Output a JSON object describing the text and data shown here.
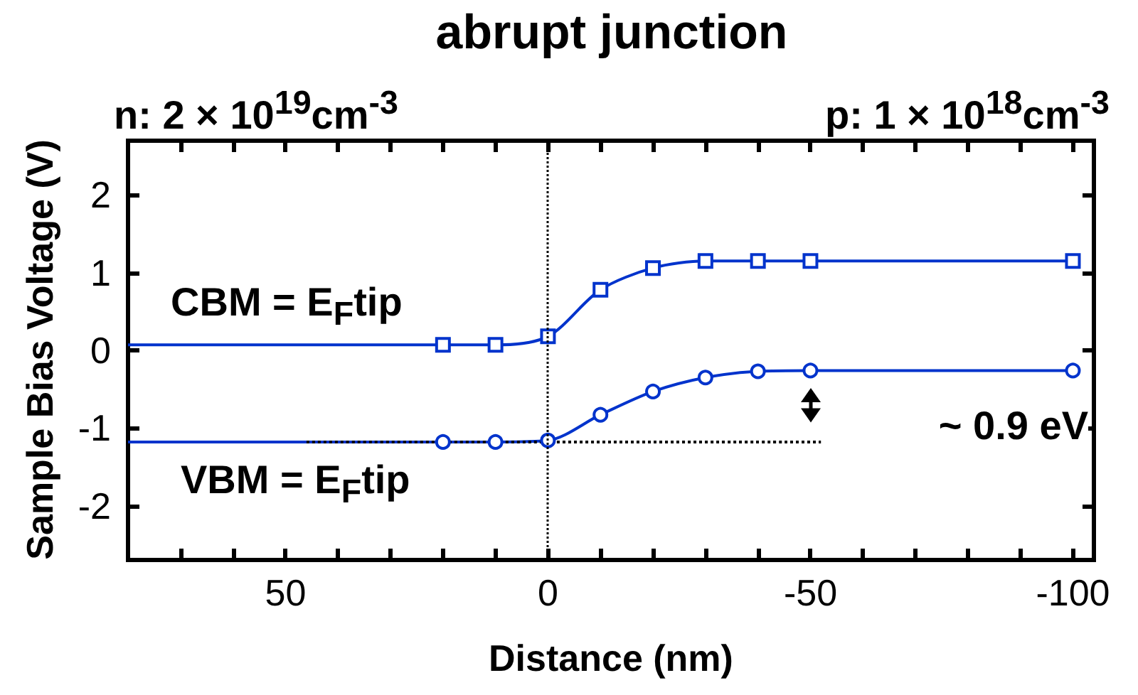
{
  "chart_data": {
    "type": "line",
    "title": "abrupt junction",
    "xlabel": "Distance (nm)",
    "ylabel": "Sample Bias Voltage (V)",
    "xlim": [
      80,
      -104
    ],
    "xticks": [
      50,
      0,
      -50,
      -100
    ],
    "ylim": [
      -2.7,
      2.7
    ],
    "yticks": [
      -2,
      -1,
      0,
      1,
      2
    ],
    "grid": false,
    "series": [
      {
        "color": "#0033cc",
        "marker": "square",
        "x": [
          20,
          10,
          0,
          -10,
          -20,
          -30,
          -40,
          -50,
          -100
        ],
        "values": [
          0.07,
          0.07,
          0.18,
          0.78,
          1.06,
          1.15,
          1.15,
          1.15,
          1.15
        ]
      },
      {
        "color": "#0033cc",
        "marker": "none",
        "x": [
          80,
          20
        ],
        "values": [
          0.07,
          0.07
        ]
      },
      {
        "color": "#0033cc",
        "marker": "circle",
        "x": [
          20,
          10,
          0,
          -10,
          -20,
          -30,
          -40,
          -50,
          -100
        ],
        "values": [
          -1.18,
          -1.18,
          -1.16,
          -0.83,
          -0.53,
          -0.35,
          -0.27,
          -0.26,
          -0.26
        ]
      },
      {
        "color": "#0033cc",
        "marker": "none",
        "x": [
          80,
          20
        ],
        "values": [
          -1.18,
          -1.18
        ]
      },
      {
        "color": "#000000",
        "marker": "none",
        "line_style": "dotted",
        "x": [
          46,
          -52
        ],
        "values": [
          -1.18,
          -1.18
        ]
      }
    ],
    "ref_lines": [
      {
        "axis": "x",
        "value": 0,
        "color": "#000000",
        "line_style": "dotted"
      }
    ],
    "annotations": [
      "n: 2 × 10$^{19}$cm$^{-3}$",
      "p: 1 × 10$^{18}$cm$^{-3}$",
      "CBM = E$_{F}$tip",
      "VBM = E$_{F}$tip",
      "~ 0.9 eV"
    ]
  }
}
